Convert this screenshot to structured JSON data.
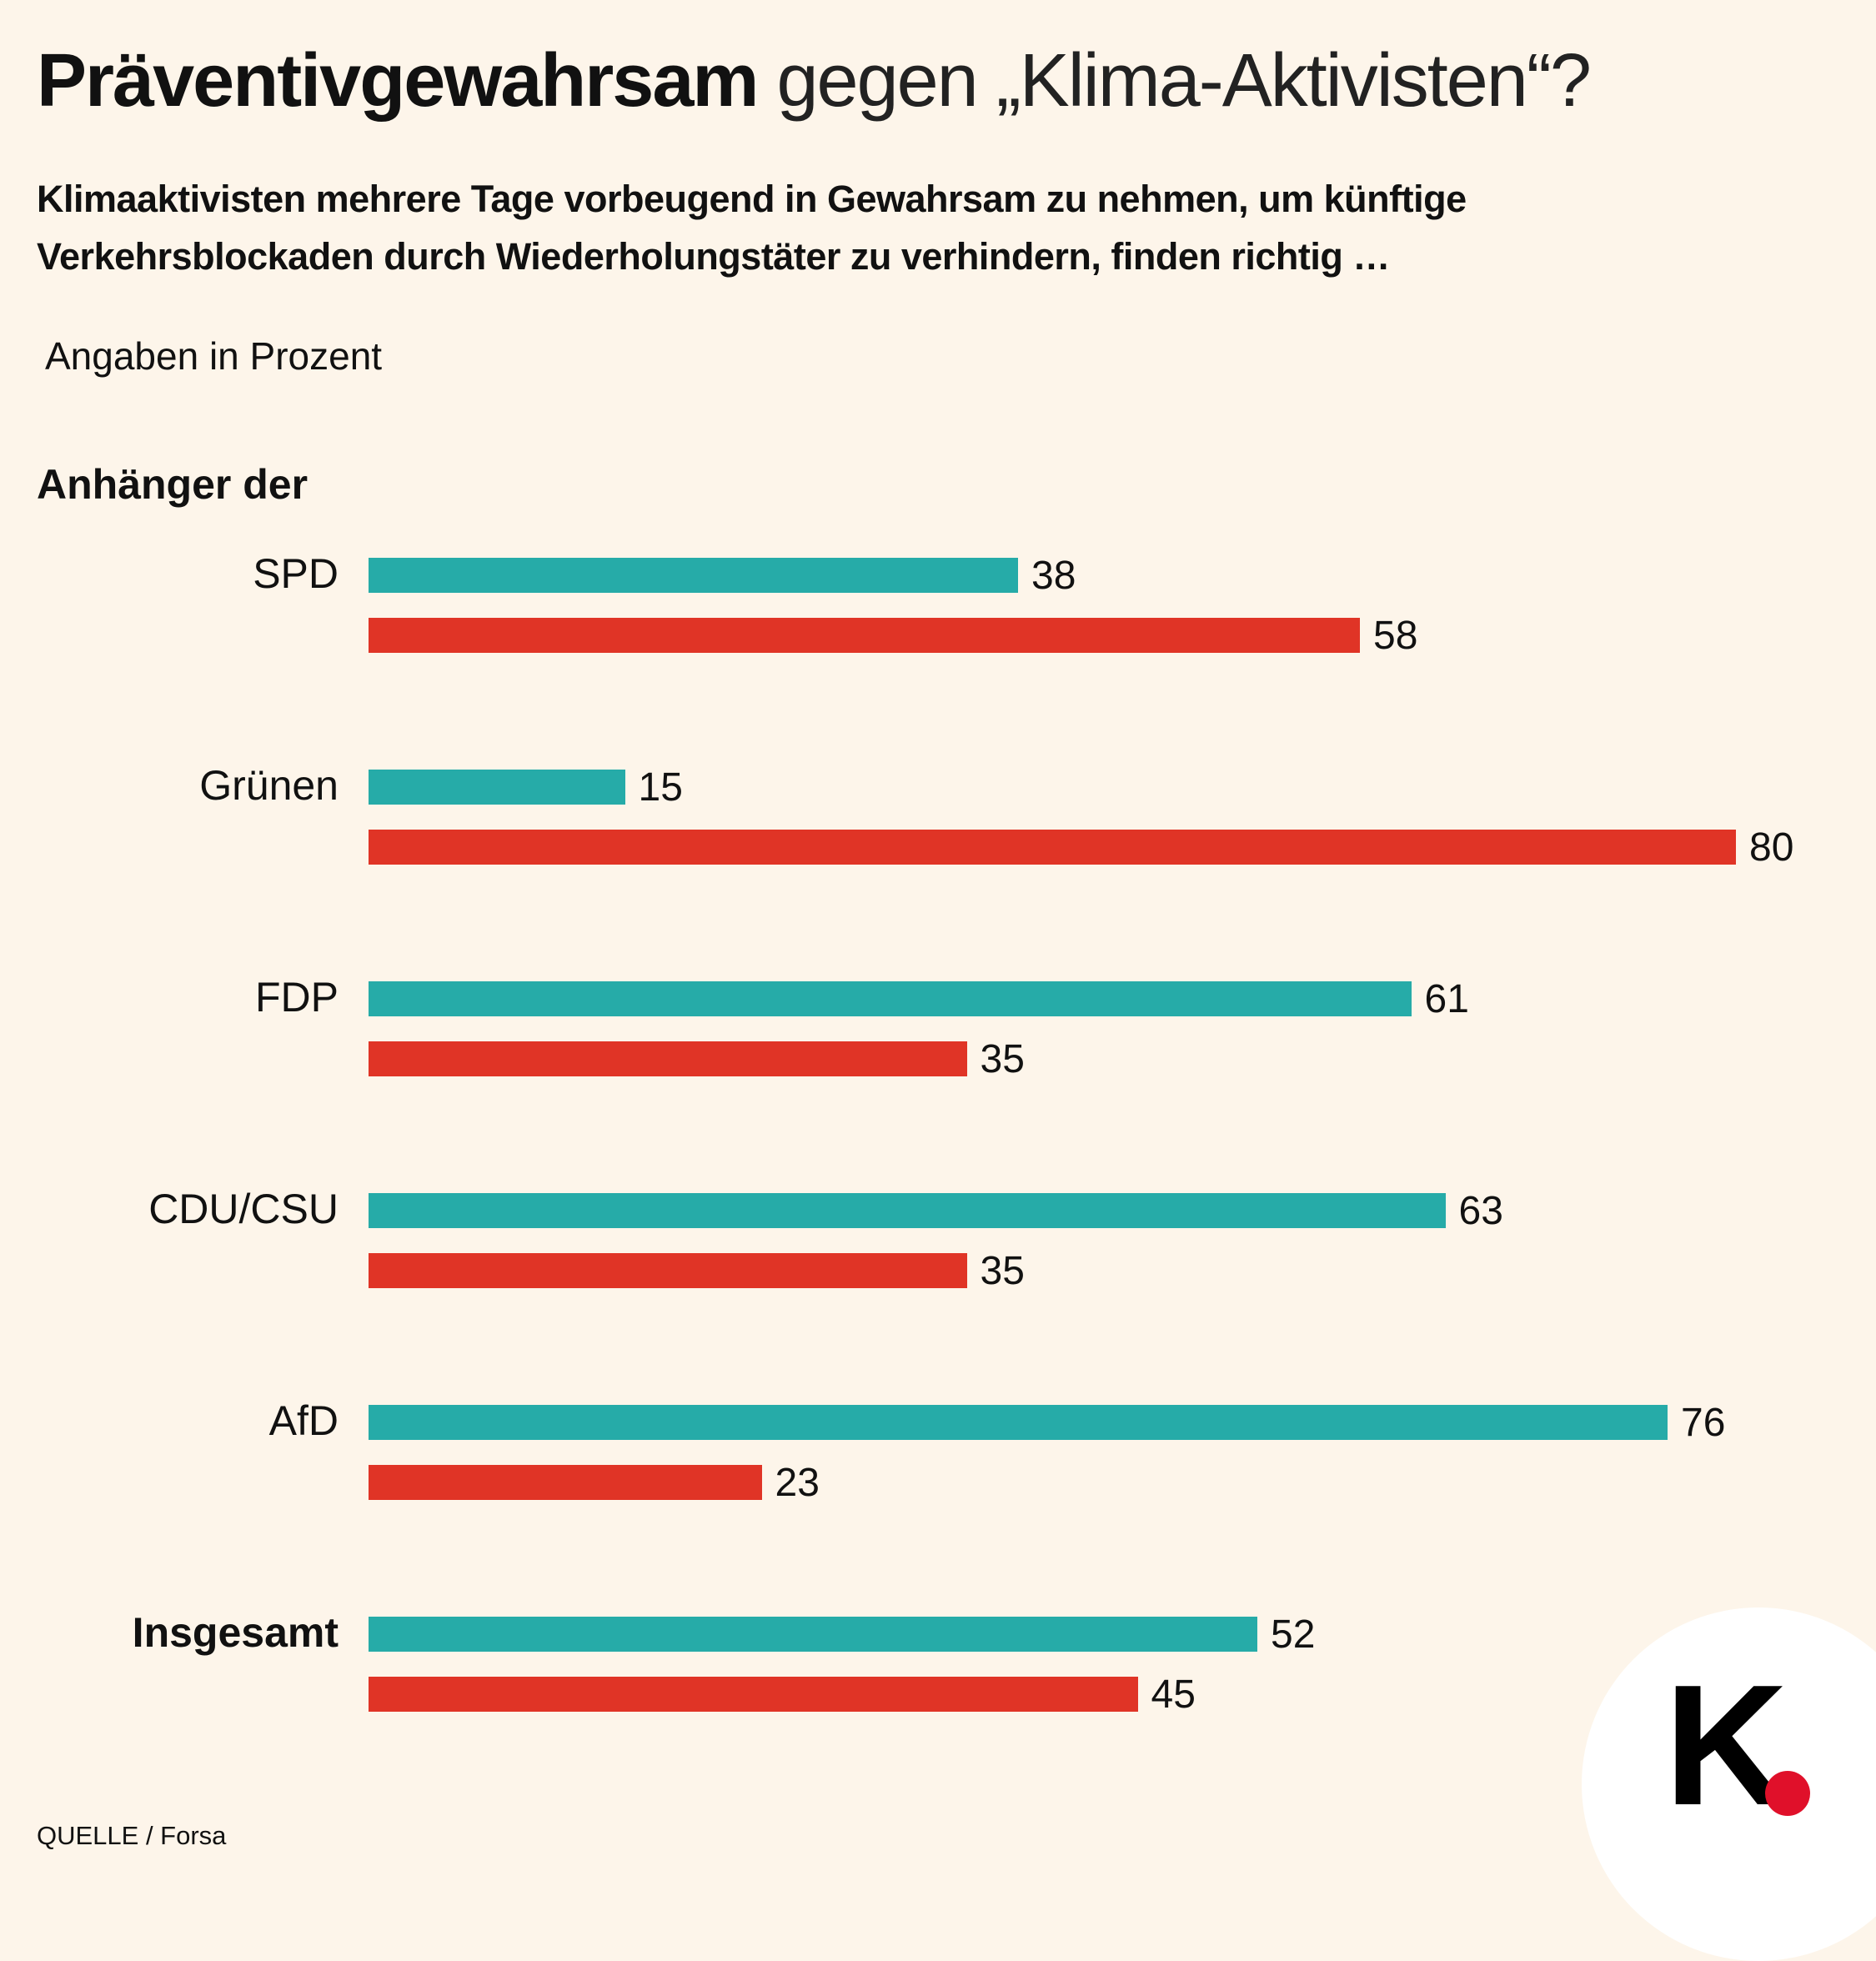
{
  "title": {
    "bold": "Präventivgewahrsam",
    "light": " gegen „Klima-Aktivisten“?"
  },
  "subtitle": [
    "Klimaaktivisten mehrere Tage vorbeugend in Gewahrsam zu nehmen, um künftige",
    "Verkehrsblockaden durch Wiederholungstäter zu verhindern, finden richtig …"
  ],
  "unit_note": "Angaben in Prozent",
  "group_heading": "Anhänger der",
  "source": "QUELLE / Forsa",
  "logo": "K.",
  "colors": {
    "background": "#FDF5EA",
    "teal": "#26ABA8",
    "red": "#E03426"
  },
  "chart_data": {
    "type": "bar",
    "orientation": "horizontal",
    "title": "Präventivgewahrsam gegen „Klima-Aktivisten“?",
    "categories": [
      "SPD",
      "Grünen",
      "FDP",
      "CDU/CSU",
      "AfD",
      "Insgesamt"
    ],
    "bold_categories": [
      "Insgesamt"
    ],
    "series": [
      {
        "name": "teal",
        "color": "#26ABA8",
        "values": [
          38,
          15,
          61,
          63,
          76,
          52
        ]
      },
      {
        "name": "red",
        "color": "#E03426",
        "values": [
          58,
          80,
          35,
          35,
          23,
          45
        ]
      }
    ],
    "xlim": [
      0,
      80
    ],
    "grid": false,
    "xlabel": "",
    "ylabel": ""
  }
}
